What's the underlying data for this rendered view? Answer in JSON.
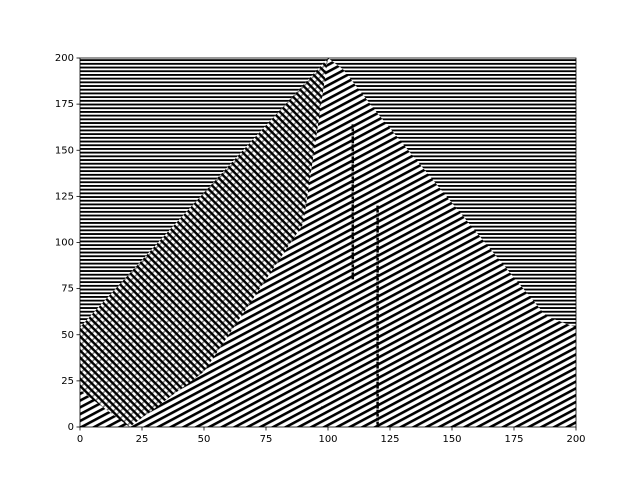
{
  "chart_data": {
    "type": "image",
    "xlim": [
      0,
      200
    ],
    "ylim": [
      0,
      200
    ],
    "xticks": [
      0,
      25,
      50,
      75,
      100,
      125,
      150,
      175,
      200
    ],
    "yticks": [
      0,
      25,
      50,
      75,
      100,
      125,
      150,
      175,
      200
    ]
  }
}
